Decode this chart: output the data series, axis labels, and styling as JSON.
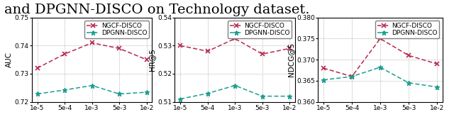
{
  "x_labels": [
    "1e-5",
    "5e-4",
    "1e-3",
    "5e-3",
    "1e-2"
  ],
  "caption": "and DPGNN-DISCO on Technology dataset.",
  "plots": [
    {
      "ylabel": "AUC",
      "ylim": [
        0.72,
        0.75
      ],
      "yticks": [
        0.72,
        0.73,
        0.74,
        0.75
      ],
      "ngcf": [
        0.732,
        0.737,
        0.741,
        0.739,
        0.735
      ],
      "dpgnn": [
        0.7228,
        0.7242,
        0.7258,
        0.7228,
        0.7234
      ]
    },
    {
      "ylabel": "HR@5",
      "ylim": [
        0.51,
        0.54
      ],
      "yticks": [
        0.51,
        0.52,
        0.53,
        0.54
      ],
      "ngcf": [
        0.53,
        0.528,
        0.5325,
        0.527,
        0.529
      ],
      "dpgnn": [
        0.511,
        0.513,
        0.5158,
        0.512,
        0.512
      ]
    },
    {
      "ylabel": "NDCG@5",
      "ylim": [
        0.36,
        0.38
      ],
      "yticks": [
        0.36,
        0.365,
        0.37,
        0.375,
        0.38
      ],
      "ngcf": [
        0.368,
        0.366,
        0.375,
        0.371,
        0.369
      ],
      "dpgnn": [
        0.3652,
        0.366,
        0.3682,
        0.3645,
        0.3635
      ]
    }
  ],
  "ngcf_color": "#b5294e",
  "dpgnn_color": "#1a9e8f",
  "ngcf_label": "NGCF-DISCO",
  "dpgnn_label": "DPGNN-DISCO",
  "legend_fontsize": 6.5,
  "tick_fontsize": 6.5,
  "ylabel_fontsize": 7.5,
  "caption_fontsize": 14
}
